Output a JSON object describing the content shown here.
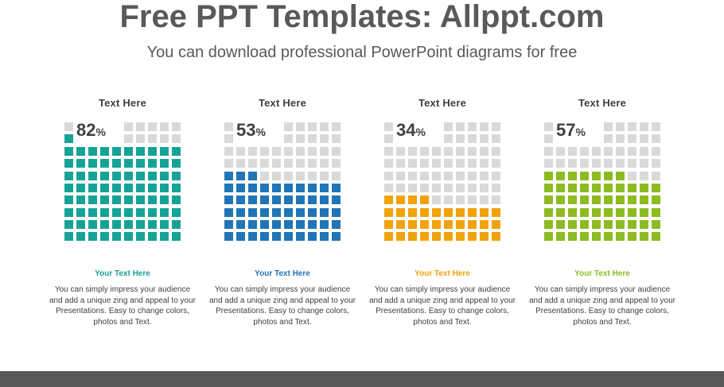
{
  "header": {
    "title": "Free PPT Templates: Allppt.com",
    "subtitle": "You can download professional PowerPoint diagrams for free"
  },
  "colors": {
    "empty_cell": "#d9d9d9",
    "text_dark": "#404040"
  },
  "chart_data": {
    "type": "waffle",
    "grid": {
      "columns": 10,
      "rows": 10
    },
    "items": [
      {
        "heading": "Text  Here",
        "value": 82,
        "unit": "%",
        "label": "Your Text  Here",
        "color": "#16a397",
        "description": "You can simply impress your audience and add a unique zing and appeal to your Presentations. Easy to change colors, photos and Text."
      },
      {
        "heading": "Text  Here",
        "value": 53,
        "unit": "%",
        "label": "Your Text  Here",
        "color": "#1f75b8",
        "description": "You can simply impress your audience and add a unique zing and appeal to your Presentations. Easy to change colors, photos and Text."
      },
      {
        "heading": "Text  Here",
        "value": 34,
        "unit": "%",
        "label": "Your Text  Here",
        "color": "#f2a20a",
        "description": "You can simply impress your audience and add a unique zing and appeal to your Presentations. Easy to change colors, photos and Text."
      },
      {
        "heading": "Text  Here",
        "value": 57,
        "unit": "%",
        "label": "Your Text  Here",
        "color": "#8cbc22",
        "description": "You can simply impress your audience and add a unique zing and appeal to your Presentations. Easy to change colors, photos and Text."
      }
    ]
  }
}
